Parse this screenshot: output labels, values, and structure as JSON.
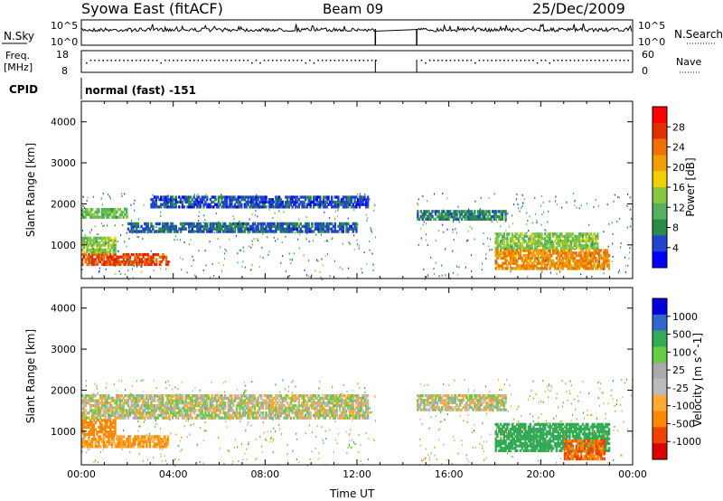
{
  "header": {
    "title": "Syowa East (fitACF)",
    "beam": "Beam 09",
    "date": "25/Dec/2009"
  },
  "noise_panel": {
    "left_label": "N.Sky",
    "right_label": "N.Search",
    "tick_top": "10^5",
    "tick_bottom": "10^0"
  },
  "freq_panel": {
    "left_label_1": "Freq.",
    "left_label_2": "[MHz]",
    "left_tick_top": "18",
    "left_tick_bottom": "8",
    "right_label": "Nave",
    "right_tick_top": "60",
    "right_tick_bottom": "0"
  },
  "cpid": {
    "label": "CPID",
    "value": "normal (fast) -151"
  },
  "colors": {
    "power": [
      "#0000ff",
      "#2244cc",
      "#2a8a4a",
      "#55b060",
      "#88c840",
      "#f0d000",
      "#f0a000",
      "#f07000",
      "#e03000",
      "#ff0000"
    ],
    "velocity": [
      "#dd0000",
      "#ee4400",
      "#ff8800",
      "#ffaa33",
      "#bbbbbb",
      "#aaaaaa",
      "#66cc44",
      "#33aa55",
      "#3366cc",
      "#0000dd"
    ]
  },
  "chart_data": [
    {
      "type": "heatmap",
      "name": "power",
      "ylabel": "Slant Range [km]",
      "xlabel": "",
      "ylim": [
        180,
        4500
      ],
      "yticks": [
        "1000",
        "2000",
        "3000",
        "4000"
      ],
      "colorbar_label": "Power [dB]",
      "colorbar_ticks": [
        "4",
        "8",
        "12",
        "16",
        "20",
        "24",
        "28"
      ],
      "colorbar_range": [
        0,
        32
      ],
      "data_gap_hours": [
        12.8,
        14.6
      ],
      "regions": [
        {
          "t0": 0.0,
          "t1": 3.8,
          "r0": 500,
          "r1": 800,
          "value": 26
        },
        {
          "t0": 0.0,
          "t1": 1.5,
          "r0": 800,
          "r1": 1200,
          "value": 14
        },
        {
          "t0": 0.0,
          "t1": 2.0,
          "r0": 1650,
          "r1": 1900,
          "value": 12
        },
        {
          "t0": 2.0,
          "t1": 12.0,
          "r0": 1300,
          "r1": 1550,
          "value": 6
        },
        {
          "t0": 3.0,
          "t1": 12.5,
          "r0": 1900,
          "r1": 2200,
          "value": 5
        },
        {
          "t0": 14.6,
          "t1": 18.5,
          "r0": 1600,
          "r1": 1850,
          "value": 8
        },
        {
          "t0": 18.0,
          "t1": 23.0,
          "r0": 400,
          "r1": 900,
          "value": 22
        },
        {
          "t0": 18.0,
          "t1": 22.5,
          "r0": 900,
          "r1": 1300,
          "value": 14
        }
      ]
    },
    {
      "type": "heatmap",
      "name": "velocity",
      "ylabel": "Slant Range [km]",
      "xlabel": "Time UT",
      "xticks": [
        "00:00",
        "04:00",
        "08:00",
        "12:00",
        "16:00",
        "20:00",
        "00:00"
      ],
      "xlim": [
        0,
        24
      ],
      "ylim": [
        180,
        4500
      ],
      "yticks": [
        "1000",
        "2000",
        "3000",
        "4000"
      ],
      "colorbar_label": "Velocity [m s^-1]",
      "colorbar_ticks": [
        "1000",
        "500",
        "100",
        "25",
        "-25",
        "-100",
        "-500",
        "-1000"
      ],
      "data_gap_hours": [
        12.8,
        14.6
      ],
      "regions": [
        {
          "t0": 0.0,
          "t1": 3.8,
          "r0": 600,
          "r1": 900,
          "value": -100
        },
        {
          "t0": 0.0,
          "t1": 1.5,
          "r0": 900,
          "r1": 1300,
          "value": -300
        },
        {
          "t0": 0.0,
          "t1": 12.5,
          "r0": 1300,
          "r1": 1900,
          "value": 0
        },
        {
          "t0": 14.6,
          "t1": 18.5,
          "r0": 1500,
          "r1": 1900,
          "value": 0
        },
        {
          "t0": 18.0,
          "t1": 23.0,
          "r0": 500,
          "r1": 1200,
          "value": 300
        },
        {
          "t0": 21.0,
          "t1": 22.8,
          "r0": 300,
          "r1": 800,
          "value": -500
        }
      ]
    }
  ]
}
